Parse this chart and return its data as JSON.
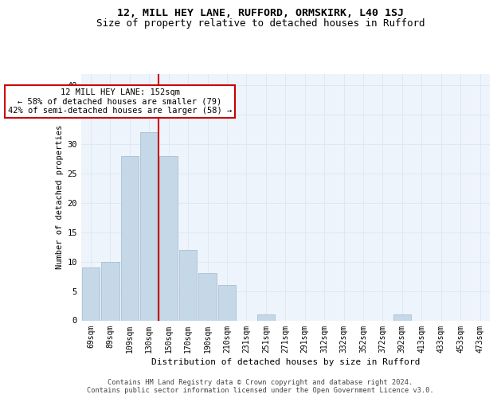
{
  "title1": "12, MILL HEY LANE, RUFFORD, ORMSKIRK, L40 1SJ",
  "title2": "Size of property relative to detached houses in Rufford",
  "xlabel": "Distribution of detached houses by size in Rufford",
  "ylabel": "Number of detached properties",
  "categories": [
    "69sqm",
    "89sqm",
    "109sqm",
    "130sqm",
    "150sqm",
    "170sqm",
    "190sqm",
    "210sqm",
    "231sqm",
    "251sqm",
    "271sqm",
    "291sqm",
    "312sqm",
    "332sqm",
    "352sqm",
    "372sqm",
    "392sqm",
    "413sqm",
    "433sqm",
    "453sqm",
    "473sqm"
  ],
  "values": [
    9,
    10,
    28,
    32,
    28,
    12,
    8,
    6,
    0,
    1,
    0,
    0,
    0,
    0,
    0,
    0,
    1,
    0,
    0,
    0,
    0
  ],
  "bar_color": "#c5d8e8",
  "bar_edge_color": "#a0b8cc",
  "grid_color": "#dce9f5",
  "bg_color": "#eef4fb",
  "vline_color": "#cc0000",
  "vline_index": 4,
  "annotation_line1": "12 MILL HEY LANE: 152sqm",
  "annotation_line2": "← 58% of detached houses are smaller (79)",
  "annotation_line3": "42% of semi-detached houses are larger (58) →",
  "annotation_box_color": "#cc0000",
  "footer": "Contains HM Land Registry data © Crown copyright and database right 2024.\nContains public sector information licensed under the Open Government Licence v3.0.",
  "ylim": [
    0,
    42
  ],
  "yticks": [
    0,
    5,
    10,
    15,
    20,
    25,
    30,
    35,
    40
  ],
  "title1_fontsize": 9.5,
  "title2_fontsize": 9.0,
  "ylabel_fontsize": 7.5,
  "xlabel_fontsize": 8.0,
  "tick_fontsize": 7.0,
  "ann_fontsize": 7.5,
  "footer_fontsize": 6.2
}
